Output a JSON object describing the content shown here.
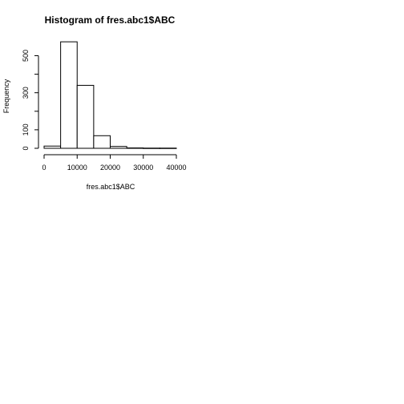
{
  "chart_data": {
    "type": "bar",
    "title": "Histogram of fres.abc1$ABC",
    "xlabel": "fres.abc1$ABC",
    "ylabel": "Frequency",
    "bins": [
      {
        "from": 0,
        "to": 5000,
        "count": 12
      },
      {
        "from": 5000,
        "to": 10000,
        "count": 575
      },
      {
        "from": 10000,
        "to": 15000,
        "count": 340
      },
      {
        "from": 15000,
        "to": 20000,
        "count": 68
      },
      {
        "from": 20000,
        "to": 25000,
        "count": 10
      },
      {
        "from": 25000,
        "to": 30000,
        "count": 2
      },
      {
        "from": 30000,
        "to": 35000,
        "count": 1
      },
      {
        "from": 35000,
        "to": 40000,
        "count": 1
      }
    ],
    "xlim": [
      0,
      40000
    ],
    "ylim": [
      0,
      580
    ],
    "x_ticks": [
      {
        "value": 0,
        "label": "0"
      },
      {
        "value": 10000,
        "label": "10000"
      },
      {
        "value": 20000,
        "label": "20000"
      },
      {
        "value": 30000,
        "label": "30000"
      },
      {
        "value": 40000,
        "label": "40000"
      }
    ],
    "y_ticks": [
      {
        "value": 0,
        "label": "0"
      },
      {
        "value": 100,
        "label": "100"
      },
      {
        "value": 200,
        "label": ""
      },
      {
        "value": 300,
        "label": "300"
      },
      {
        "value": 400,
        "label": ""
      },
      {
        "value": 500,
        "label": "500"
      }
    ],
    "grid": false,
    "colors": {
      "bar_fill": "#ffffff",
      "bar_stroke": "#000000"
    }
  }
}
